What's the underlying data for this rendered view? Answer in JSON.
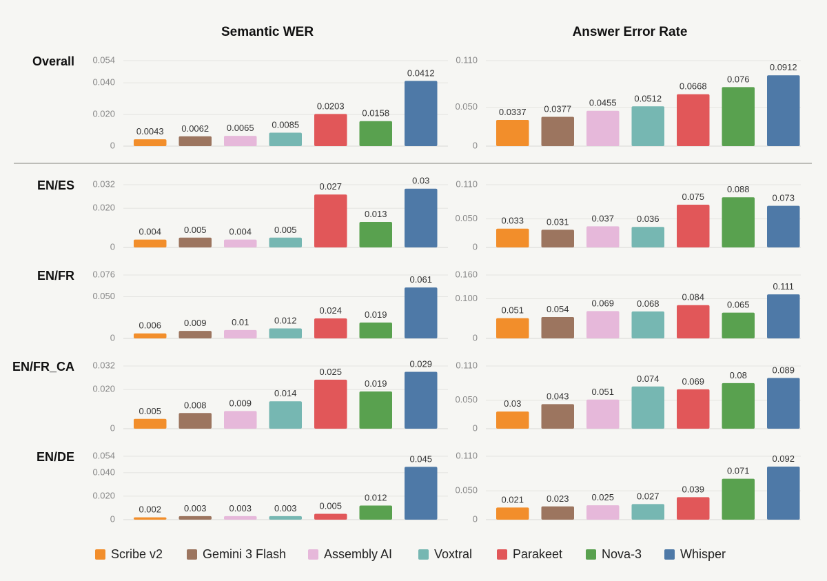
{
  "chart_data": {
    "type": "bar",
    "columns": [
      "Semantic WER",
      "Answer Error Rate"
    ],
    "rows": [
      "Overall",
      "EN/ES",
      "EN/FR",
      "EN/FR_CA",
      "EN/DE"
    ],
    "series": [
      {
        "name": "Scribe v2",
        "color": "#f28e2b"
      },
      {
        "name": "Gemini 3 Flash",
        "color": "#9c755f"
      },
      {
        "name": "Assembly AI",
        "color": "#e6b8da"
      },
      {
        "name": "Voxtral",
        "color": "#76b7b2"
      },
      {
        "name": "Parakeet",
        "color": "#e15759"
      },
      {
        "name": "Nova-3",
        "color": "#59a14f"
      },
      {
        "name": "Whisper",
        "color": "#4e79a7"
      }
    ],
    "panels": [
      {
        "row": "Overall",
        "column": "Semantic WER",
        "values": [
          0.0043,
          0.0062,
          0.0065,
          0.0085,
          0.0203,
          0.0158,
          0.0412
        ],
        "labels": [
          "0.0043",
          "0.0062",
          "0.0065",
          "0.0085",
          "0.0203",
          "0.0158",
          "0.0412"
        ],
        "ylim": [
          0,
          0.054
        ],
        "ticks": [
          0,
          0.02,
          0.04,
          0.054
        ],
        "tick_labels": [
          "0",
          "0.020",
          "0.040",
          "0.054"
        ]
      },
      {
        "row": "Overall",
        "column": "Answer Error Rate",
        "values": [
          0.0337,
          0.0377,
          0.0455,
          0.0512,
          0.0668,
          0.076,
          0.0912
        ],
        "labels": [
          "0.0337",
          "0.0377",
          "0.0455",
          "0.0512",
          "0.0668",
          "0.076",
          "0.0912"
        ],
        "ylim": [
          0,
          0.11
        ],
        "ticks": [
          0,
          0.05,
          0.11
        ],
        "tick_labels": [
          "0",
          "0.050",
          "0.110"
        ]
      },
      {
        "row": "EN/ES",
        "column": "Semantic WER",
        "values": [
          0.004,
          0.005,
          0.004,
          0.005,
          0.027,
          0.013,
          0.03
        ],
        "labels": [
          "0.004",
          "0.005",
          "0.004",
          "0.005",
          "0.027",
          "0.013",
          "0.03"
        ],
        "ylim": [
          0,
          0.032
        ],
        "ticks": [
          0,
          0.02,
          0.032
        ],
        "tick_labels": [
          "0",
          "0.020",
          "0.032"
        ]
      },
      {
        "row": "EN/ES",
        "column": "Answer Error Rate",
        "values": [
          0.033,
          0.031,
          0.037,
          0.036,
          0.075,
          0.088,
          0.073
        ],
        "labels": [
          "0.033",
          "0.031",
          "0.037",
          "0.036",
          "0.075",
          "0.088",
          "0.073"
        ],
        "ylim": [
          0,
          0.11
        ],
        "ticks": [
          0,
          0.05,
          0.11
        ],
        "tick_labels": [
          "0",
          "0.050",
          "0.110"
        ]
      },
      {
        "row": "EN/FR",
        "column": "Semantic WER",
        "values": [
          0.006,
          0.009,
          0.01,
          0.012,
          0.024,
          0.019,
          0.061
        ],
        "labels": [
          "0.006",
          "0.009",
          "0.01",
          "0.012",
          "0.024",
          "0.019",
          "0.061"
        ],
        "ylim": [
          0,
          0.076
        ],
        "ticks": [
          0,
          0.05,
          0.076
        ],
        "tick_labels": [
          "0",
          "0.050",
          "0.076"
        ]
      },
      {
        "row": "EN/FR",
        "column": "Answer Error Rate",
        "values": [
          0.051,
          0.054,
          0.069,
          0.068,
          0.084,
          0.065,
          0.111
        ],
        "labels": [
          "0.051",
          "0.054",
          "0.069",
          "0.068",
          "0.084",
          "0.065",
          "0.111"
        ],
        "ylim": [
          0,
          0.16
        ],
        "ticks": [
          0,
          0.1,
          0.16
        ],
        "tick_labels": [
          "0",
          "0.100",
          "0.160"
        ]
      },
      {
        "row": "EN/FR_CA",
        "column": "Semantic WER",
        "values": [
          0.005,
          0.008,
          0.009,
          0.014,
          0.025,
          0.019,
          0.029
        ],
        "labels": [
          "0.005",
          "0.008",
          "0.009",
          "0.014",
          "0.025",
          "0.019",
          "0.029"
        ],
        "ylim": [
          0,
          0.032
        ],
        "ticks": [
          0,
          0.02,
          0.032
        ],
        "tick_labels": [
          "0",
          "0.020",
          "0.032"
        ]
      },
      {
        "row": "EN/FR_CA",
        "column": "Answer Error Rate",
        "values": [
          0.03,
          0.043,
          0.051,
          0.074,
          0.069,
          0.08,
          0.089
        ],
        "labels": [
          "0.03",
          "0.043",
          "0.051",
          "0.074",
          "0.069",
          "0.08",
          "0.089"
        ],
        "ylim": [
          0,
          0.11
        ],
        "ticks": [
          0,
          0.05,
          0.11
        ],
        "tick_labels": [
          "0",
          "0.050",
          "0.110"
        ]
      },
      {
        "row": "EN/DE",
        "column": "Semantic WER",
        "values": [
          0.002,
          0.003,
          0.003,
          0.003,
          0.005,
          0.012,
          0.045
        ],
        "labels": [
          "0.002",
          "0.003",
          "0.003",
          "0.003",
          "0.005",
          "0.012",
          "0.045"
        ],
        "ylim": [
          0,
          0.054
        ],
        "ticks": [
          0,
          0.02,
          0.04,
          0.054
        ],
        "tick_labels": [
          "0",
          "0.020",
          "0.040",
          "0.054"
        ]
      },
      {
        "row": "EN/DE",
        "column": "Answer Error Rate",
        "values": [
          0.021,
          0.023,
          0.025,
          0.027,
          0.039,
          0.071,
          0.092
        ],
        "labels": [
          "0.021",
          "0.023",
          "0.025",
          "0.027",
          "0.039",
          "0.071",
          "0.092"
        ],
        "ylim": [
          0,
          0.11
        ],
        "ticks": [
          0,
          0.05,
          0.11
        ],
        "tick_labels": [
          "0",
          "0.050",
          "0.110"
        ]
      }
    ],
    "grid": true,
    "legend_position": "bottom"
  }
}
